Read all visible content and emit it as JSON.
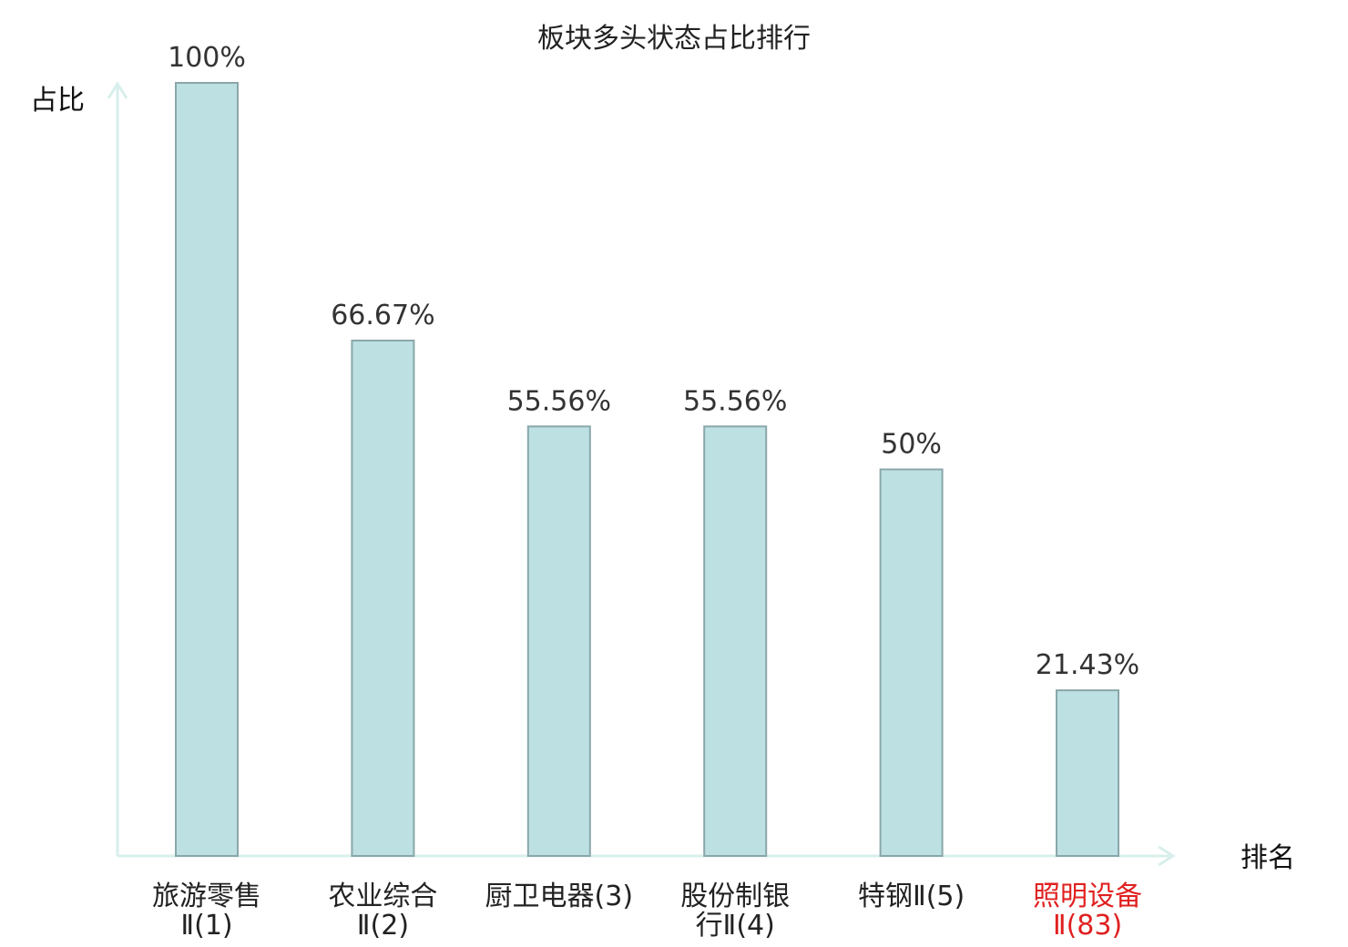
{
  "chart_data": {
    "type": "bar",
    "title": "板块多头状态占比排行",
    "ylabel": "占比",
    "xlabel": "排名",
    "ylim": [
      0,
      100
    ],
    "grid": false,
    "legend": "none",
    "categories": [
      {
        "lines": [
          "旅游零售",
          "Ⅱ(1)"
        ],
        "highlight": false
      },
      {
        "lines": [
          "农业综合",
          "Ⅱ(2)"
        ],
        "highlight": false
      },
      {
        "lines": [
          "厨卫电器(3)"
        ],
        "highlight": false
      },
      {
        "lines": [
          "股份制银",
          "行Ⅱ(4)"
        ],
        "highlight": false
      },
      {
        "lines": [
          "特钢Ⅱ(5)"
        ],
        "highlight": false
      },
      {
        "lines": [
          "照明设备",
          "Ⅱ(83)"
        ],
        "highlight": true
      }
    ],
    "values": [
      100,
      66.67,
      55.56,
      55.56,
      50,
      21.43
    ],
    "value_labels": [
      "100%",
      "66.67%",
      "55.56%",
      "55.56%",
      "50%",
      "21.43%"
    ],
    "colors": {
      "bar_fill": "#bde0e3",
      "bar_stroke": "#8aa7ab",
      "axis": "#d8efec",
      "highlight_text": "#e02020"
    }
  }
}
